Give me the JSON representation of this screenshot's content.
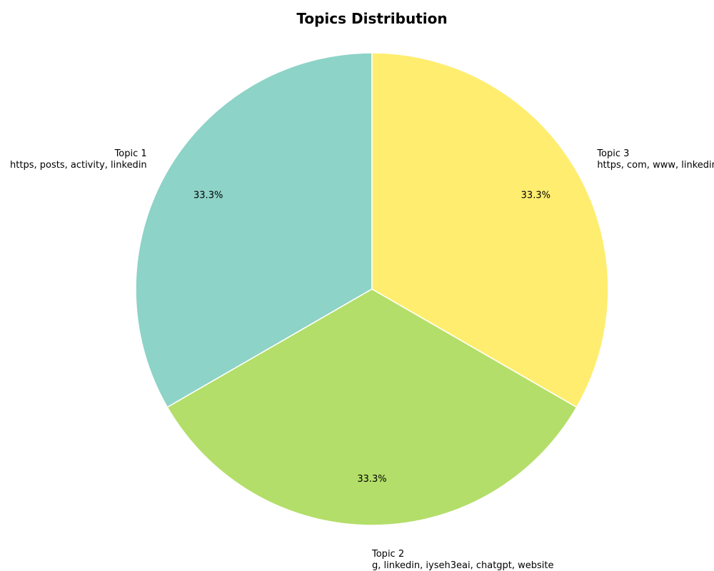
{
  "chart_data": {
    "type": "pie",
    "title": "Topics Distribution",
    "slices": [
      {
        "name": "Topic 1",
        "keywords": "https, posts, activity, linkedin",
        "value": 33.3,
        "label": "33.3%",
        "color": "#8dd3c7"
      },
      {
        "name": "Topic 2",
        "keywords": "g, linkedin, iyseh3eai, chatgpt, website",
        "value": 33.3,
        "label": "33.3%",
        "color": "#b3de69"
      },
      {
        "name": "Topic 3",
        "keywords": "https, com, www, linkedin",
        "value": 33.3,
        "label": "33.3%",
        "color": "#ffed6f"
      }
    ],
    "start_angle_deg": 90,
    "direction": "counterclockwise",
    "wedge_edge_color": "#ffffff",
    "legend": "none"
  }
}
